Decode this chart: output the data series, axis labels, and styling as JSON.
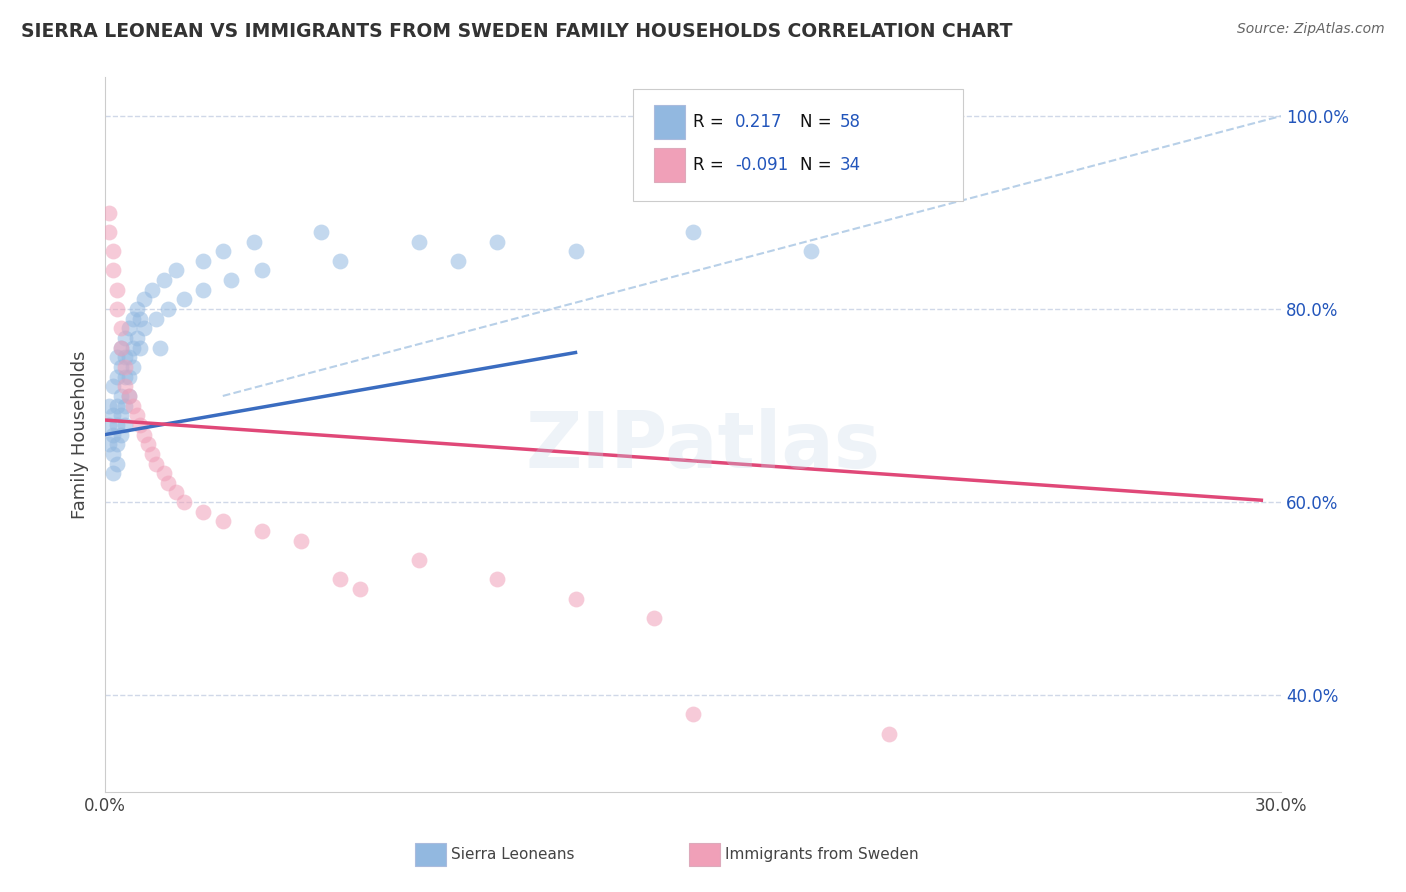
{
  "title": "SIERRA LEONEAN VS IMMIGRANTS FROM SWEDEN FAMILY HOUSEHOLDS CORRELATION CHART",
  "source": "Source: ZipAtlas.com",
  "ylabel": "Family Households",
  "x_min": 0.0,
  "x_max": 0.3,
  "y_min": 0.3,
  "y_max": 1.04,
  "y_ticks": [
    0.4,
    0.6,
    0.8,
    1.0
  ],
  "y_tick_labels": [
    "40.0%",
    "60.0%",
    "80.0%",
    "100.0%"
  ],
  "x_ticks": [
    0.0,
    0.05,
    0.1,
    0.15,
    0.2,
    0.25,
    0.3
  ],
  "x_tick_labels": [
    "0.0%",
    "",
    "",
    "",
    "",
    "",
    "30.0%"
  ],
  "color_blue": "#92b8e0",
  "color_pink": "#f0a0b8",
  "color_blue_line": "#3a6cc0",
  "color_pink_line": "#e04878",
  "color_dashed": "#b8d0e8",
  "blue_scatter_x": [
    0.001,
    0.001,
    0.001,
    0.002,
    0.002,
    0.002,
    0.002,
    0.002,
    0.003,
    0.003,
    0.003,
    0.003,
    0.003,
    0.003,
    0.004,
    0.004,
    0.004,
    0.004,
    0.004,
    0.005,
    0.005,
    0.005,
    0.005,
    0.005,
    0.006,
    0.006,
    0.006,
    0.006,
    0.007,
    0.007,
    0.007,
    0.008,
    0.008,
    0.009,
    0.009,
    0.01,
    0.01,
    0.012,
    0.013,
    0.014,
    0.015,
    0.016,
    0.018,
    0.02,
    0.025,
    0.025,
    0.03,
    0.032,
    0.038,
    0.04,
    0.055,
    0.06,
    0.08,
    0.09,
    0.1,
    0.12,
    0.15,
    0.18
  ],
  "blue_scatter_y": [
    0.7,
    0.68,
    0.66,
    0.72,
    0.69,
    0.67,
    0.65,
    0.63,
    0.75,
    0.73,
    0.7,
    0.68,
    0.66,
    0.64,
    0.76,
    0.74,
    0.71,
    0.69,
    0.67,
    0.77,
    0.75,
    0.73,
    0.7,
    0.68,
    0.78,
    0.75,
    0.73,
    0.71,
    0.79,
    0.76,
    0.74,
    0.8,
    0.77,
    0.79,
    0.76,
    0.81,
    0.78,
    0.82,
    0.79,
    0.76,
    0.83,
    0.8,
    0.84,
    0.81,
    0.85,
    0.82,
    0.86,
    0.83,
    0.87,
    0.84,
    0.88,
    0.85,
    0.87,
    0.85,
    0.87,
    0.86,
    0.88,
    0.86
  ],
  "pink_scatter_x": [
    0.001,
    0.001,
    0.002,
    0.002,
    0.003,
    0.003,
    0.004,
    0.004,
    0.005,
    0.005,
    0.006,
    0.007,
    0.008,
    0.009,
    0.01,
    0.011,
    0.012,
    0.013,
    0.015,
    0.016,
    0.018,
    0.02,
    0.025,
    0.03,
    0.04,
    0.05,
    0.06,
    0.065,
    0.08,
    0.1,
    0.12,
    0.14,
    0.15,
    0.2
  ],
  "pink_scatter_y": [
    0.9,
    0.88,
    0.86,
    0.84,
    0.82,
    0.8,
    0.78,
    0.76,
    0.74,
    0.72,
    0.71,
    0.7,
    0.69,
    0.68,
    0.67,
    0.66,
    0.65,
    0.64,
    0.63,
    0.62,
    0.61,
    0.6,
    0.59,
    0.58,
    0.57,
    0.56,
    0.52,
    0.51,
    0.54,
    0.52,
    0.5,
    0.48,
    0.38,
    0.36
  ],
  "blue_line_x": [
    0.0,
    0.12
  ],
  "blue_line_y": [
    0.67,
    0.755
  ],
  "pink_line_x": [
    0.0,
    0.295
  ],
  "pink_line_y": [
    0.685,
    0.602
  ],
  "dashed_line_x": [
    0.03,
    0.3
  ],
  "dashed_line_y": [
    0.71,
    1.0
  ],
  "background_color": "#ffffff",
  "grid_color": "#d0d8e8",
  "title_color": "#333333",
  "source_color": "#666666",
  "legend_blue_r": " 0.217",
  "legend_blue_n": "58",
  "legend_pink_r": "-0.091",
  "legend_pink_n": "34"
}
